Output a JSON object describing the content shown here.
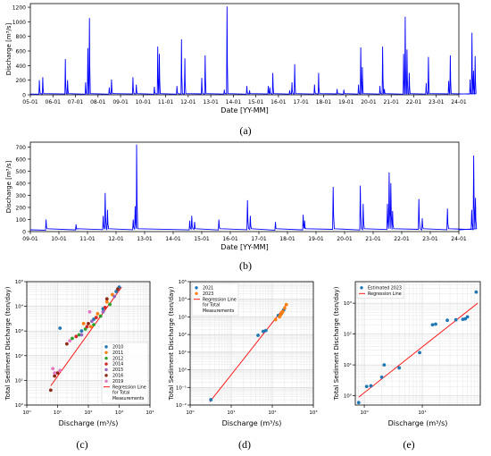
{
  "panels": [
    {
      "id": "a",
      "label": "(a)"
    },
    {
      "id": "b",
      "label": "(b)"
    },
    {
      "id": "c",
      "label": "(c)"
    },
    {
      "id": "d",
      "label": "(d)"
    },
    {
      "id": "e",
      "label": "(e)"
    }
  ],
  "chart_data": [
    {
      "id": "a",
      "type": "line",
      "xlabel": "Date [YY-MM]",
      "ylabel": "Discharge [m³/s]",
      "xlim": [
        "2005-01",
        "2024-01"
      ],
      "ylim": [
        0,
        1250
      ],
      "yticks": [
        0,
        200,
        400,
        600,
        800,
        1000,
        1200
      ],
      "xtick_labels": [
        "05-01",
        "06-01",
        "07-01",
        "08-01",
        "09-01",
        "10-01",
        "11-01",
        "12-01",
        "13-01",
        "14-01",
        "15-01",
        "16-01",
        "17-01",
        "18-01",
        "19-01",
        "20-01",
        "21-01",
        "22-01",
        "23-01",
        "24-01"
      ],
      "grid": false,
      "color": "#0000ff",
      "baseline": 10,
      "peaks": [
        [
          2005.4,
          200
        ],
        [
          2005.55,
          240
        ],
        [
          2006.55,
          490
        ],
        [
          2006.65,
          200
        ],
        [
          2007.45,
          170
        ],
        [
          2007.55,
          640
        ],
        [
          2007.62,
          1050
        ],
        [
          2008.5,
          100
        ],
        [
          2008.6,
          210
        ],
        [
          2009.55,
          240
        ],
        [
          2009.7,
          140
        ],
        [
          2010.5,
          110
        ],
        [
          2010.65,
          660
        ],
        [
          2010.72,
          560
        ],
        [
          2011.5,
          120
        ],
        [
          2011.7,
          760
        ],
        [
          2011.85,
          500
        ],
        [
          2012.6,
          230
        ],
        [
          2012.75,
          540
        ],
        [
          2013.6,
          70
        ],
        [
          2013.72,
          1210
        ],
        [
          2014.6,
          120
        ],
        [
          2014.72,
          60
        ],
        [
          2015.55,
          120
        ],
        [
          2015.62,
          100
        ],
        [
          2015.75,
          300
        ],
        [
          2016.5,
          60
        ],
        [
          2016.6,
          170
        ],
        [
          2016.72,
          420
        ],
        [
          2017.6,
          140
        ],
        [
          2017.78,
          300
        ],
        [
          2018.6,
          80
        ],
        [
          2018.9,
          70
        ],
        [
          2019.55,
          140
        ],
        [
          2019.65,
          650
        ],
        [
          2019.72,
          380
        ],
        [
          2020.5,
          120
        ],
        [
          2020.62,
          660
        ],
        [
          2020.7,
          80
        ],
        [
          2021.55,
          560
        ],
        [
          2021.62,
          1070
        ],
        [
          2021.7,
          620
        ],
        [
          2021.8,
          300
        ],
        [
          2022.55,
          160
        ],
        [
          2022.65,
          520
        ],
        [
          2023.55,
          190
        ],
        [
          2023.62,
          540
        ],
        [
          2024.5,
          210
        ],
        [
          2024.58,
          850
        ],
        [
          2024.65,
          330
        ],
        [
          2024.72,
          530
        ]
      ]
    },
    {
      "id": "b",
      "type": "line",
      "xlabel": "Date [YY-MM]",
      "ylabel": "Discharge [m³/s]",
      "xlim": [
        "2009-01",
        "2024-01"
      ],
      "ylim": [
        0,
        740
      ],
      "yticks": [
        0,
        100,
        200,
        300,
        400,
        500,
        600,
        700
      ],
      "xtick_labels": [
        "09-01",
        "10-01",
        "11-01",
        "12-01",
        "13-01",
        "14-01",
        "15-01",
        "16-01",
        "17-01",
        "18-01",
        "19-01",
        "20-01",
        "21-01",
        "22-01",
        "23-01",
        "24-01"
      ],
      "grid": false,
      "color": "#0000ff",
      "baseline": 15,
      "peaks": [
        [
          2009.55,
          100
        ],
        [
          2010.6,
          60
        ],
        [
          2011.55,
          130
        ],
        [
          2011.62,
          320
        ],
        [
          2011.7,
          180
        ],
        [
          2012.6,
          100
        ],
        [
          2012.67,
          210
        ],
        [
          2012.72,
          720
        ],
        [
          2014.58,
          90
        ],
        [
          2014.65,
          130
        ],
        [
          2014.75,
          80
        ],
        [
          2015.6,
          100
        ],
        [
          2016.6,
          260
        ],
        [
          2016.7,
          130
        ],
        [
          2017.58,
          80
        ],
        [
          2018.55,
          140
        ],
        [
          2018.6,
          90
        ],
        [
          2019.6,
          370
        ],
        [
          2020.55,
          380
        ],
        [
          2020.65,
          230
        ],
        [
          2021.5,
          230
        ],
        [
          2021.56,
          490
        ],
        [
          2021.62,
          400
        ],
        [
          2021.68,
          170
        ],
        [
          2022.6,
          270
        ],
        [
          2022.72,
          110
        ],
        [
          2023.6,
          190
        ],
        [
          2024.45,
          180
        ],
        [
          2024.52,
          630
        ],
        [
          2024.58,
          280
        ]
      ]
    },
    {
      "id": "c",
      "type": "scatter",
      "xscale": "log",
      "yscale": "log",
      "xlabel": "Discharge (m³/s)",
      "ylabel": "Total Sediment Discharge (ton/day)",
      "xlim": [
        1,
        10000
      ],
      "ylim": [
        1,
        100000
      ],
      "xtick_labels": [
        "10⁰",
        "10¹",
        "10²",
        "10³",
        "10⁴"
      ],
      "ytick_labels": [
        "10⁰",
        "10¹",
        "10²",
        "10³",
        "10⁴",
        "10⁵"
      ],
      "grid": true,
      "legend_position": "bottom-right",
      "series": [
        {
          "name": "2010",
          "color": "#1f77b4",
          "points": [
            [
              12,
              1300
            ],
            [
              60,
              1000
            ],
            [
              300,
              8000
            ],
            [
              800,
              40000
            ],
            [
              1000,
              60000
            ],
            [
              150,
              3000
            ]
          ]
        },
        {
          "name": "2011",
          "color": "#ff7f0e",
          "points": [
            [
              70,
              2000
            ],
            [
              200,
              5000
            ],
            [
              400,
              15000
            ],
            [
              600,
              30000
            ],
            [
              120,
              1500
            ]
          ]
        },
        {
          "name": "2012",
          "color": "#2ca02c",
          "points": [
            [
              30,
              500
            ],
            [
              50,
              700
            ],
            [
              80,
              1200
            ],
            [
              150,
              1800
            ],
            [
              250,
              4000
            ],
            [
              500,
              12000
            ]
          ]
        },
        {
          "name": "2014",
          "color": "#d62728",
          "points": [
            [
              40,
              600
            ],
            [
              90,
              1500
            ],
            [
              180,
              3500
            ],
            [
              350,
              9000
            ]
          ]
        },
        {
          "name": "2015",
          "color": "#9467bd",
          "points": [
            [
              60,
              700
            ],
            [
              130,
              2500
            ],
            [
              300,
              6000
            ],
            [
              700,
              25000
            ]
          ]
        },
        {
          "name": "2016",
          "color": "#8c2a16",
          "points": [
            [
              6,
              4
            ],
            [
              8,
              15
            ],
            [
              10,
              20
            ],
            [
              20,
              300
            ],
            [
              100,
              2000
            ],
            [
              400,
              20000
            ],
            [
              900,
              50000
            ]
          ]
        },
        {
          "name": "2019",
          "color": "#e377c2",
          "points": [
            [
              7,
              30
            ],
            [
              8,
              20
            ],
            [
              12,
              25
            ],
            [
              25,
              400
            ],
            [
              110,
              6000
            ]
          ]
        }
      ],
      "regression": {
        "name": "Regression Line for Total Measurements",
        "color": "#ff0000",
        "from": [
          6,
          6
        ],
        "to": [
          1200,
          60000
        ]
      }
    },
    {
      "id": "d",
      "type": "scatter",
      "xscale": "log",
      "yscale": "log",
      "xlabel": "Discharge (m³/s)",
      "ylabel": "Total Sediment Discharge (ton/day)",
      "xlim": [
        1,
        1000
      ],
      "ylim": [
        0.01,
        100000
      ],
      "xtick_labels": [
        "10⁰",
        "10¹",
        "10²",
        "10³"
      ],
      "ytick_labels": [
        "10⁻²",
        "10⁻¹",
        "10⁰",
        "10¹",
        "10²",
        "10³",
        "10⁴",
        "10⁵"
      ],
      "grid": true,
      "legend_position": "top-left",
      "series": [
        {
          "name": "2021",
          "color": "#1f77b4",
          "points": [
            [
              3.2,
              0.02
            ],
            [
              45,
              90
            ],
            [
              60,
              150
            ],
            [
              70,
              170
            ],
            [
              140,
              1200
            ],
            [
              170,
              1600
            ],
            [
              190,
              2500
            ]
          ]
        },
        {
          "name": "2023",
          "color": "#ff7f0e",
          "points": [
            [
              120,
              700
            ],
            [
              150,
              1000
            ],
            [
              160,
              1300
            ],
            [
              170,
              1700
            ],
            [
              180,
              2000
            ],
            [
              200,
              3200
            ],
            [
              220,
              5000
            ]
          ]
        }
      ],
      "regression": {
        "name": "Regression Line for Total Measurements",
        "color": "#ff0000",
        "from": [
          3,
          0.015
        ],
        "to": [
          230,
          5500
        ]
      }
    },
    {
      "id": "e",
      "type": "scatter",
      "xscale": "log",
      "yscale": "log",
      "xlabel": "Discharge (m³/s)",
      "ylabel": "Total Sediment Discharge (ton/day)",
      "xlim": [
        0.7,
        100
      ],
      "ylim": [
        0.5,
        5000
      ],
      "xtick_labels": [
        "10⁰",
        "10¹"
      ],
      "ytick_labels": [
        "10⁰",
        "10¹",
        "10²",
        "10³"
      ],
      "grid": true,
      "legend_position": "top-left",
      "series": [
        {
          "name": "Estimated 2023",
          "color": "#1f77b4",
          "points": [
            [
              0.8,
              0.6
            ],
            [
              1.1,
              2
            ],
            [
              1.3,
              2.1
            ],
            [
              2,
              4
            ],
            [
              2.2,
              10
            ],
            [
              4,
              8
            ],
            [
              9,
              25
            ],
            [
              15,
              200
            ],
            [
              17,
              210
            ],
            [
              27,
              280
            ],
            [
              38,
              290
            ],
            [
              50,
              300
            ],
            [
              55,
              310
            ],
            [
              60,
              360
            ],
            [
              85,
              2300
            ]
          ]
        }
      ],
      "regression": {
        "name": "Regression Line",
        "color": "#ff0000",
        "from": [
          0.8,
          0.9
        ],
        "to": [
          90,
          1000
        ]
      }
    }
  ]
}
